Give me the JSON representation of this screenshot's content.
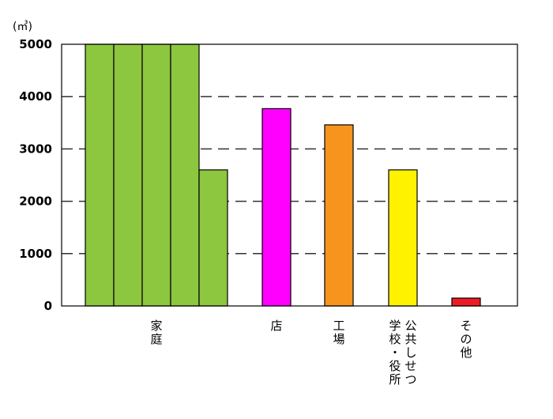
{
  "chart_data": {
    "type": "bar",
    "title": "",
    "xlabel": "",
    "ylabel": "(㎥)",
    "ylim": [
      0,
      5000
    ],
    "yticks": [
      0,
      1000,
      2000,
      3000,
      4000,
      5000
    ],
    "grid": "horizontal-dashed",
    "categories": [
      {
        "label": "家庭",
        "label_columns": [
          "家庭"
        ],
        "segments": [
          5000,
          5000,
          5000,
          5000,
          2600
        ],
        "color": "#8dc63f"
      },
      {
        "label": "店",
        "label_columns": [
          "店"
        ],
        "segments": [
          3770
        ],
        "color": "#ff00ff"
      },
      {
        "label": "工場",
        "label_columns": [
          "工場"
        ],
        "segments": [
          3460
        ],
        "color": "#f7941d"
      },
      {
        "label": "公共しせつ 学校・役所",
        "label_columns": [
          "公共しせつ",
          "学校・役所"
        ],
        "segments": [
          2600
        ],
        "color": "#fff200"
      },
      {
        "label": "その他",
        "label_columns": [
          "その他"
        ],
        "segments": [
          150
        ],
        "color": "#ed1c24"
      }
    ]
  }
}
